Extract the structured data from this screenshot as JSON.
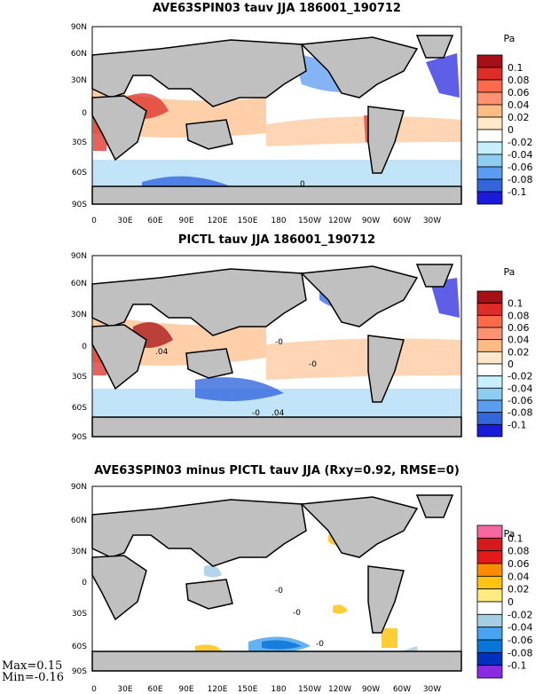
{
  "panels": [
    {
      "title": "AVE63SPIN03 tauv JJA 186001_190712",
      "unit": "Pa",
      "lat_ticks": [
        "90N",
        "60N",
        "30N",
        "0",
        "30S",
        "60S",
        "90S"
      ],
      "lon_ticks": [
        "0",
        "30E",
        "60E",
        "90E",
        "120E",
        "150E",
        "180",
        "150W",
        "120W",
        "90W",
        "60W",
        "30W"
      ],
      "colorbar_labels": [
        "0.1",
        "0.08",
        "0.06",
        "0.04",
        "0.02",
        "0",
        "-0.02",
        "-0.04",
        "-0.06",
        "-0.08",
        "-0.1"
      ],
      "colorbar_colors": [
        "#a50f15",
        "#de2d26",
        "#fb6a4a",
        "#fc9272",
        "#fdbb84",
        "#fee8c8",
        "#ffffff",
        "#c6efff",
        "#8ecdf2",
        "#5b9bf0",
        "#3366dd",
        "#1a1adb"
      ],
      "contour_labels": [
        "0"
      ]
    },
    {
      "title": "PICTL tauv JJA 186001_190712",
      "unit": "Pa",
      "lat_ticks": [
        "90N",
        "60N",
        "30N",
        "0",
        "30S",
        "60S",
        "90S"
      ],
      "lon_ticks": [
        "0",
        "30E",
        "60E",
        "90E",
        "120E",
        "150E",
        "180",
        "150W",
        "120W",
        "90W",
        "60W",
        "30W"
      ],
      "colorbar_labels": [
        "0.1",
        "0.08",
        "0.06",
        "0.04",
        "0.02",
        "0",
        "-0.02",
        "-0.04",
        "-0.06",
        "-0.08",
        "-0.1"
      ],
      "colorbar_colors": [
        "#a50f15",
        "#de2d26",
        "#fb6a4a",
        "#fc9272",
        "#fdbb84",
        "#fee8c8",
        "#ffffff",
        "#c6efff",
        "#8ecdf2",
        "#5b9bf0",
        "#3366dd",
        "#1a1adb"
      ],
      "contour_labels": [
        "-0",
        ".04",
        "-0",
        "-0",
        ".04"
      ]
    },
    {
      "title": "AVE63SPIN03 minus PICTL tauv JJA (Rxy=0.92, RMSE=0)",
      "unit": "Pa",
      "lat_ticks": [
        "90N",
        "60N",
        "30N",
        "0",
        "30S",
        "60S",
        "90S"
      ],
      "lon_ticks": [
        "0",
        "30E",
        "60E",
        "90E",
        "120E",
        "150E",
        "180",
        "150W",
        "120W",
        "90W",
        "60W",
        "30W"
      ],
      "colorbar_labels": [
        "0.1",
        "0.08",
        "0.06",
        "0.04",
        "0.02",
        "0",
        "-0.02",
        "-0.04",
        "-0.06",
        "-0.08",
        "-0.1"
      ],
      "colorbar_colors": [
        "#f768a1",
        "#d7191c",
        "#e31a1c",
        "#ff8c00",
        "#fdc414",
        "#ffec80",
        "#ffffff",
        "#a6cee3",
        "#4aa3f0",
        "#0a75d8",
        "#0030c0",
        "#8a2be2"
      ],
      "contour_labels": [
        "-0",
        "-0",
        "-0"
      ]
    }
  ],
  "stats": {
    "max": "Max=0.15",
    "min": "Min=-0.16"
  },
  "colors": {
    "land": "#c0c0c0",
    "ocean": "#ffffff"
  }
}
